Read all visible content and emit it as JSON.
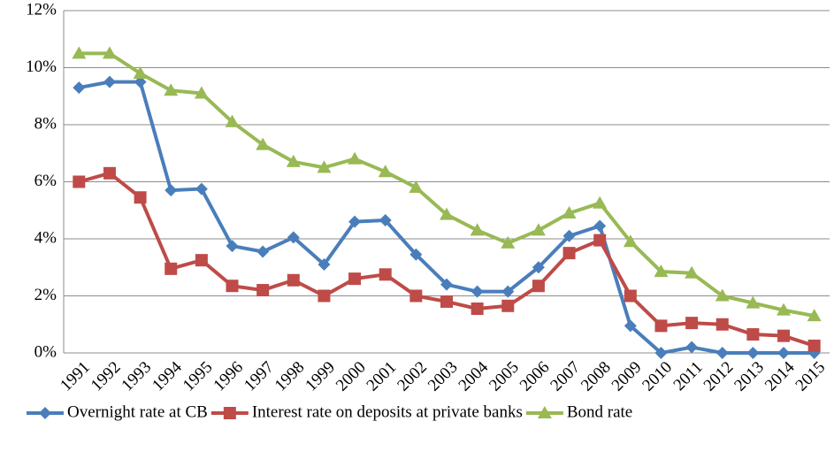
{
  "chart_data": {
    "type": "line",
    "categories": [
      "1991",
      "1992",
      "1993",
      "1994",
      "1995",
      "1996",
      "1997",
      "1998",
      "1999",
      "2000",
      "2001",
      "2002",
      "2003",
      "2004",
      "2005",
      "2006",
      "2007",
      "2008",
      "2009",
      "2010",
      "2011",
      "2012",
      "2013",
      "2014",
      "2015"
    ],
    "series": [
      {
        "name": "Overnight rate at CB",
        "color": "#4a7ebb",
        "marker": "diamond",
        "values": [
          9.3,
          9.5,
          9.5,
          5.7,
          5.75,
          3.75,
          3.55,
          4.05,
          3.1,
          4.6,
          4.65,
          3.45,
          2.4,
          2.15,
          2.15,
          3.0,
          4.1,
          4.45,
          0.95,
          0,
          0.2,
          0,
          0,
          0,
          0
        ]
      },
      {
        "name": "Interest rate on deposits at private banks",
        "color": "#be4b48",
        "marker": "square",
        "values": [
          6.0,
          6.3,
          5.45,
          2.95,
          3.25,
          2.35,
          2.2,
          2.55,
          2.0,
          2.6,
          2.75,
          2.0,
          1.8,
          1.55,
          1.65,
          2.35,
          3.5,
          3.95,
          2.0,
          0.95,
          1.05,
          1.0,
          0.65,
          0.6,
          0.25
        ]
      },
      {
        "name": "Bond rate",
        "color": "#98b954",
        "marker": "triangle",
        "values": [
          10.5,
          10.5,
          9.8,
          9.2,
          9.1,
          8.1,
          7.3,
          6.7,
          6.5,
          6.8,
          6.35,
          5.8,
          4.85,
          4.3,
          3.85,
          4.3,
          4.9,
          5.25,
          3.9,
          2.85,
          2.8,
          2.0,
          1.75,
          1.5,
          1.3
        ]
      }
    ],
    "ylim": [
      0,
      12
    ],
    "yticks": [
      {
        "value": 0,
        "label": "0%"
      },
      {
        "value": 2,
        "label": "2%"
      },
      {
        "value": 4,
        "label": "4%"
      },
      {
        "value": 6,
        "label": "6%"
      },
      {
        "value": 8,
        "label": "8%"
      },
      {
        "value": 10,
        "label": "10%"
      },
      {
        "value": 12,
        "label": "12%"
      }
    ],
    "grid": true,
    "legend": "bottom"
  }
}
